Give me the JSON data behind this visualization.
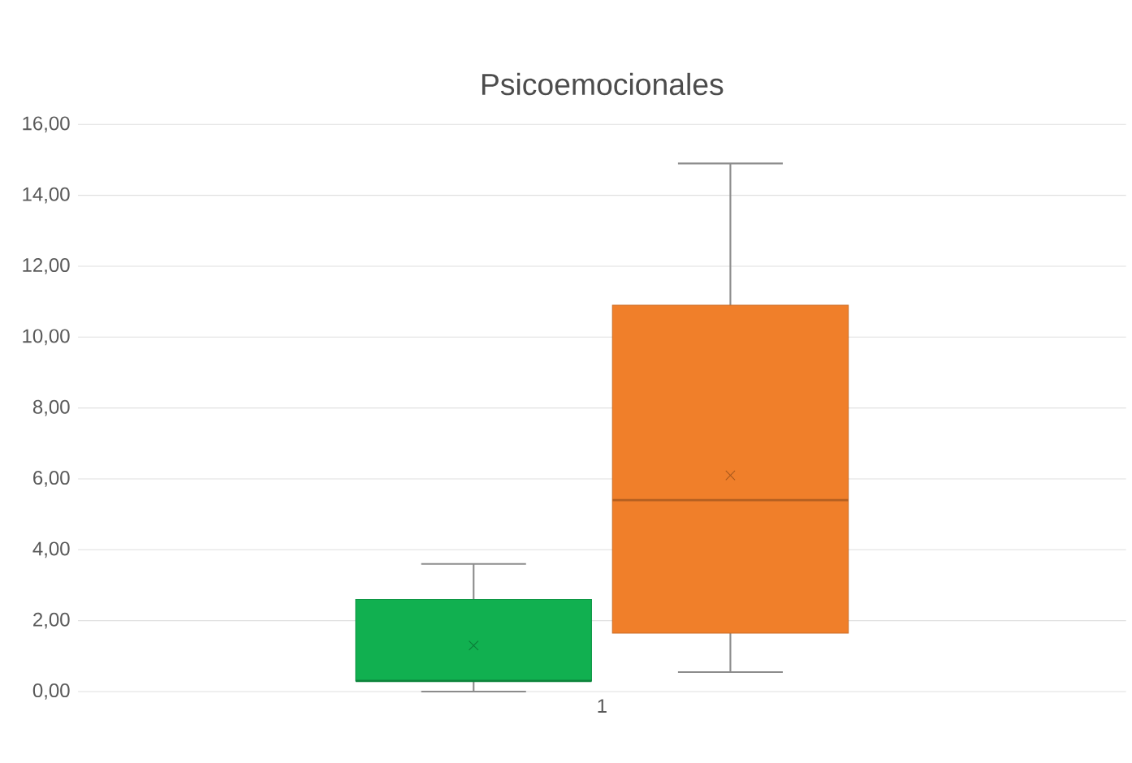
{
  "chart_data": {
    "type": "box",
    "title": "Psicoemocionales",
    "categories": [
      "1"
    ],
    "ylim": [
      0,
      16
    ],
    "yticks": [
      {
        "value": 0,
        "label": "0,00"
      },
      {
        "value": 2,
        "label": "2,00"
      },
      {
        "value": 4,
        "label": "4,00"
      },
      {
        "value": 6,
        "label": "6,00"
      },
      {
        "value": 8,
        "label": "8,00"
      },
      {
        "value": 10,
        "label": "10,00"
      },
      {
        "value": 12,
        "label": "12,00"
      },
      {
        "value": 14,
        "label": "14,00"
      },
      {
        "value": 16,
        "label": "16,00"
      }
    ],
    "grid": "y",
    "series": [
      {
        "color": "#11b050",
        "boxes": [
          {
            "low": 0.0,
            "q1": 0.3,
            "median": 0.3,
            "q3": 2.6,
            "high": 3.6,
            "mean": 1.3
          }
        ]
      },
      {
        "color": "#f07f2a",
        "boxes": [
          {
            "low": 0.55,
            "q1": 1.65,
            "median": 5.4,
            "q3": 10.9,
            "high": 14.9,
            "mean": 6.1
          }
        ]
      }
    ]
  }
}
